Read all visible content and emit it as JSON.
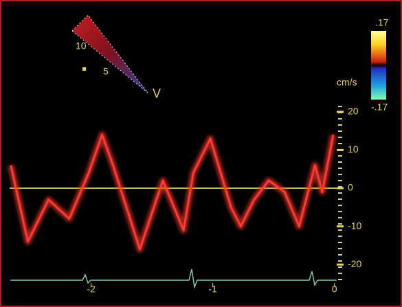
{
  "chart_data": {
    "type": "line",
    "x": [
      -2.66,
      -2.52,
      -2.35,
      -2.18,
      -2.02,
      -1.91,
      -1.82,
      -1.6,
      -1.41,
      -1.24,
      -1.16,
      -1.02,
      -0.85,
      -0.77,
      -0.66,
      -0.54,
      -0.41,
      -0.29,
      -0.16,
      -0.1,
      -0.01
    ],
    "values": [
      6,
      -14,
      -3,
      -8,
      4,
      14,
      6,
      -16,
      2,
      -11,
      4,
      13,
      -5,
      -10,
      -3,
      2,
      -1,
      -10,
      6,
      -1,
      14
    ],
    "color": "#ff3a30",
    "xlim": [
      -2.67,
      0.03
    ],
    "xticks": [
      -2,
      -1,
      0
    ],
    "ylim": [
      -25,
      25
    ],
    "yticks": [
      -20,
      -10,
      0,
      10,
      20
    ],
    "ylabel": "cm/s",
    "colorbar_labels": [
      ".17",
      "-.17"
    ],
    "sector_labels": [
      "10",
      "5",
      "V"
    ]
  }
}
